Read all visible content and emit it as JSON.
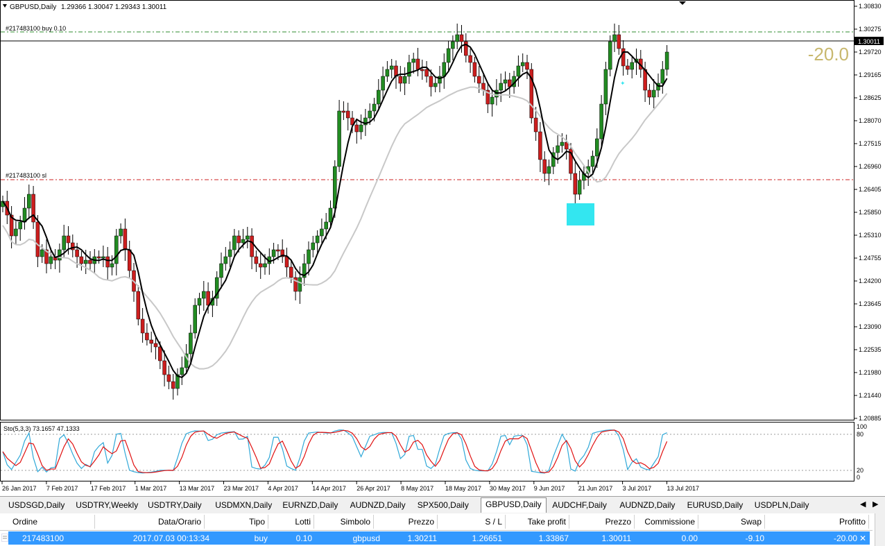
{
  "chart_header": {
    "symbol_tf": "GBPUSD,Daily",
    "ohlc": "1.29366 1.30047 1.29343 1.30011"
  },
  "order_labels": {
    "buy": "#217483100 buy 0.10",
    "sl": "#217483100 sl"
  },
  "profit_overlay": "-20.0",
  "current_price_label": "1.30011",
  "price_axis": [
    "1.30830",
    "1.30275",
    "1.29720",
    "1.29165",
    "1.28625",
    "1.28070",
    "1.27515",
    "1.26960",
    "1.26405",
    "1.25850",
    "1.25310",
    "1.24755",
    "1.24200",
    "1.23645",
    "1.23090",
    "1.22535",
    "1.21980",
    "1.21440",
    "1.20885"
  ],
  "stoch_label": "Sto(5,3,3) 73.1657 47.1333",
  "stoch_levels": [
    "100",
    "80",
    "20",
    "0"
  ],
  "date_axis": [
    "26 Jan 2017",
    "7 Feb 2017",
    "17 Feb 2017",
    "1 Mar 2017",
    "13 Mar 2017",
    "23 Mar 2017",
    "4 Apr 2017",
    "14 Apr 2017",
    "26 Apr 2017",
    "8 May 2017",
    "18 May 2017",
    "30 May 2017",
    "9 Jun 2017",
    "21 Jun 2017",
    "3 Jul 2017",
    "13 Jul 2017"
  ],
  "colors": {
    "bull": "#228b22",
    "bear": "#cc1e1e",
    "ma_fast": "#000000",
    "ma_slow": "#c8c8c8",
    "stoch_main": "#2fa8d8",
    "stoch_signal": "#e01010",
    "tp_line": "#2e8b2e",
    "sl_line": "#cc2222",
    "marker": "#33e6f0",
    "selected_row": "#3399ff"
  },
  "tabs": [
    "USDSGD,Daily",
    "USDTRY,Weekly",
    "USDTRY,Daily",
    "USDMXN,Daily",
    "EURNZD,Daily",
    "AUDNZD,Daily",
    "SPX500,Daily",
    "GBPUSD,Daily",
    "AUDCHF,Daily",
    "AUDNZD,Daily",
    "EURUSD,Daily",
    "USDPLN,Daily"
  ],
  "active_tab": "GBPUSD,Daily",
  "terminal": {
    "columns": [
      "Ordine",
      "Data/Orario",
      "Tipo",
      "Lotti",
      "Simbolo",
      "Prezzo",
      "S / L",
      "Take profit",
      "Prezzo",
      "Commissione",
      "Swap",
      "Profitto"
    ],
    "row": {
      "order": "217483100",
      "time": "2017.07.03 00:13:34",
      "type": "buy",
      "lots": "0.10",
      "symbol": "gbpusd",
      "open_price": "1.30211",
      "sl": "1.26651",
      "tp": "1.33867",
      "price": "1.30011",
      "commission": "0.00",
      "swap": "-9.10",
      "profit": "-20.00"
    }
  }
}
